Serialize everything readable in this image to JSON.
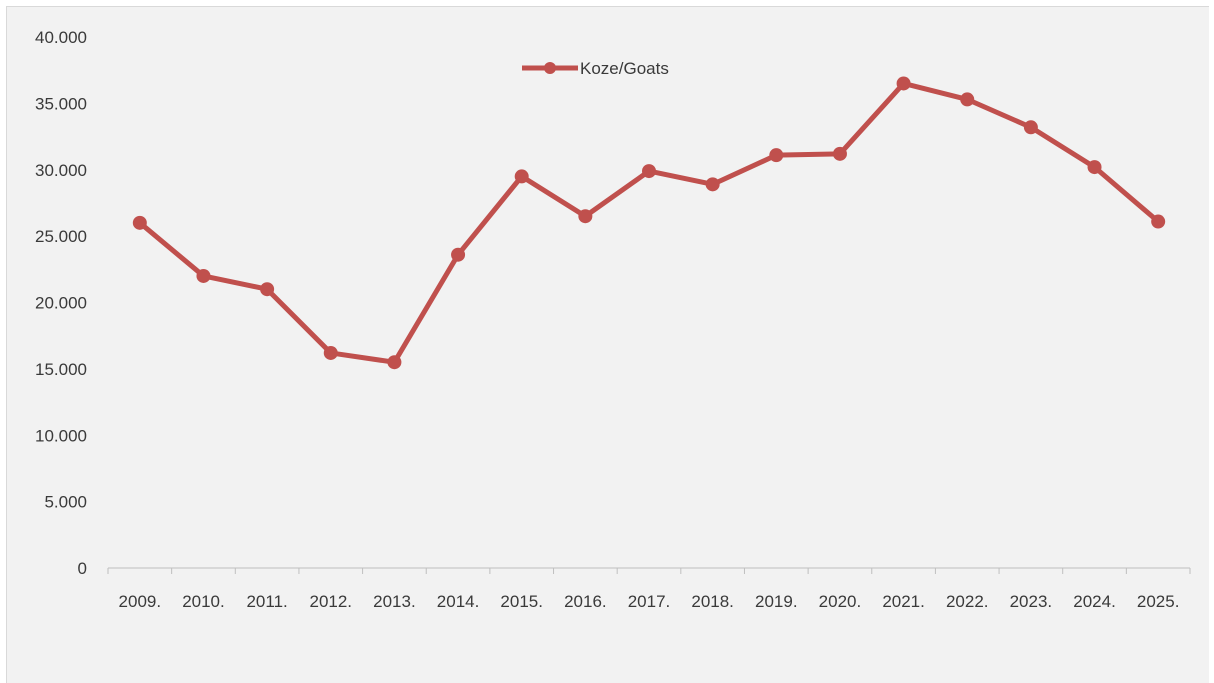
{
  "chart_data": {
    "type": "line",
    "categories": [
      "2009.",
      "2010.",
      "2011.",
      "2012.",
      "2013.",
      "2014.",
      "2015.",
      "2016.",
      "2017.",
      "2018.",
      "2019.",
      "2020.",
      "2021.",
      "2022.",
      "2023.",
      "2024.",
      "2025."
    ],
    "series": [
      {
        "name": "Koze/Goats",
        "color": "#c0504d",
        "values": [
          26000,
          22000,
          21000,
          16200,
          15500,
          23600,
          29500,
          26500,
          29900,
          28900,
          31100,
          31200,
          36500,
          35300,
          33200,
          30200,
          26100
        ]
      }
    ],
    "ylim": [
      0,
      40000
    ],
    "y_ticks": [
      0,
      5000,
      10000,
      15000,
      20000,
      25000,
      30000,
      35000,
      40000
    ],
    "y_tick_labels": [
      "0",
      "5.000",
      "10.000",
      "15.000",
      "20.000",
      "25.000",
      "30.000",
      "35.000",
      "40.000"
    ],
    "grid": false,
    "legend_position": "top-center",
    "title": "",
    "xlabel": "",
    "ylabel": ""
  }
}
